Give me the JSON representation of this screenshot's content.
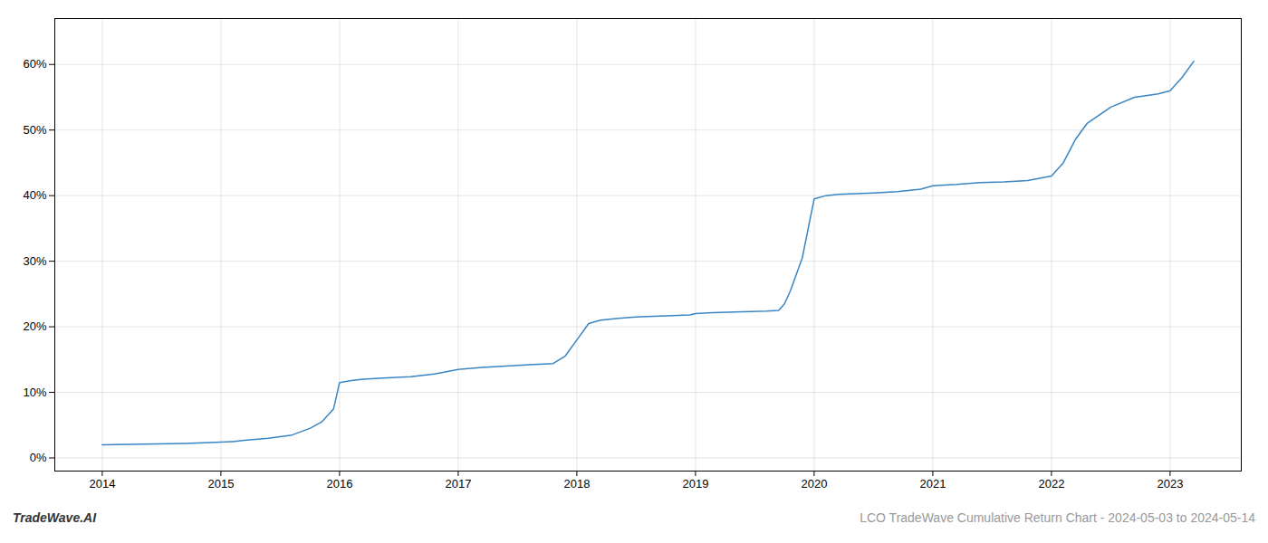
{
  "chart_data": {
    "type": "line",
    "title": "LCO TradeWave Cumulative Return Chart - 2024-05-03 to 2024-05-14",
    "annotations": [
      "TradeWave.AI"
    ],
    "color": "#3a85c3",
    "x": [
      2014.0,
      2014.35,
      2014.7,
      2015.0,
      2015.1,
      2015.2,
      2015.4,
      2015.6,
      2015.75,
      2015.85,
      2015.95,
      2016.0,
      2016.1,
      2016.2,
      2016.4,
      2016.6,
      2016.8,
      2017.0,
      2017.2,
      2017.4,
      2017.6,
      2017.8,
      2017.9,
      2018.0,
      2018.1,
      2018.2,
      2018.35,
      2018.5,
      2018.65,
      2018.8,
      2018.95,
      2019.0,
      2019.1,
      2019.2,
      2019.4,
      2019.6,
      2019.7,
      2019.75,
      2019.8,
      2019.9,
      2020.0,
      2020.1,
      2020.2,
      2020.35,
      2020.5,
      2020.7,
      2020.9,
      2021.0,
      2021.2,
      2021.4,
      2021.6,
      2021.8,
      2022.0,
      2022.1,
      2022.2,
      2022.3,
      2022.5,
      2022.7,
      2022.9,
      2023.0,
      2023.1,
      2023.2
    ],
    "values": [
      2.0,
      2.1,
      2.2,
      2.4,
      2.5,
      2.7,
      3.0,
      3.5,
      4.5,
      5.5,
      7.5,
      11.5,
      11.8,
      12.0,
      12.2,
      12.4,
      12.8,
      13.5,
      13.8,
      14.0,
      14.2,
      14.4,
      15.5,
      18.0,
      20.5,
      21.0,
      21.3,
      21.5,
      21.6,
      21.7,
      21.8,
      22.0,
      22.1,
      22.2,
      22.3,
      22.4,
      22.5,
      23.5,
      25.5,
      30.5,
      39.5,
      40.0,
      40.2,
      40.3,
      40.4,
      40.6,
      41.0,
      41.5,
      41.7,
      42.0,
      42.1,
      42.3,
      43.0,
      45.0,
      48.5,
      51.0,
      53.5,
      55.0,
      55.5,
      56.0,
      58.0,
      60.5
    ],
    "xlim": [
      2013.6,
      2023.6
    ],
    "xticks": [
      2014,
      2015,
      2016,
      2017,
      2018,
      2019,
      2020,
      2021,
      2022,
      2023
    ],
    "ylim": [
      -2,
      67
    ],
    "yticks": [
      {
        "value": 0,
        "label": "0%"
      },
      {
        "value": 10,
        "label": "10%"
      },
      {
        "value": 20,
        "label": "20%"
      },
      {
        "value": 30,
        "label": "30%"
      },
      {
        "value": 40,
        "label": "40%"
      },
      {
        "value": 50,
        "label": "50%"
      },
      {
        "value": 60,
        "label": "60%"
      }
    ],
    "grid": true
  }
}
